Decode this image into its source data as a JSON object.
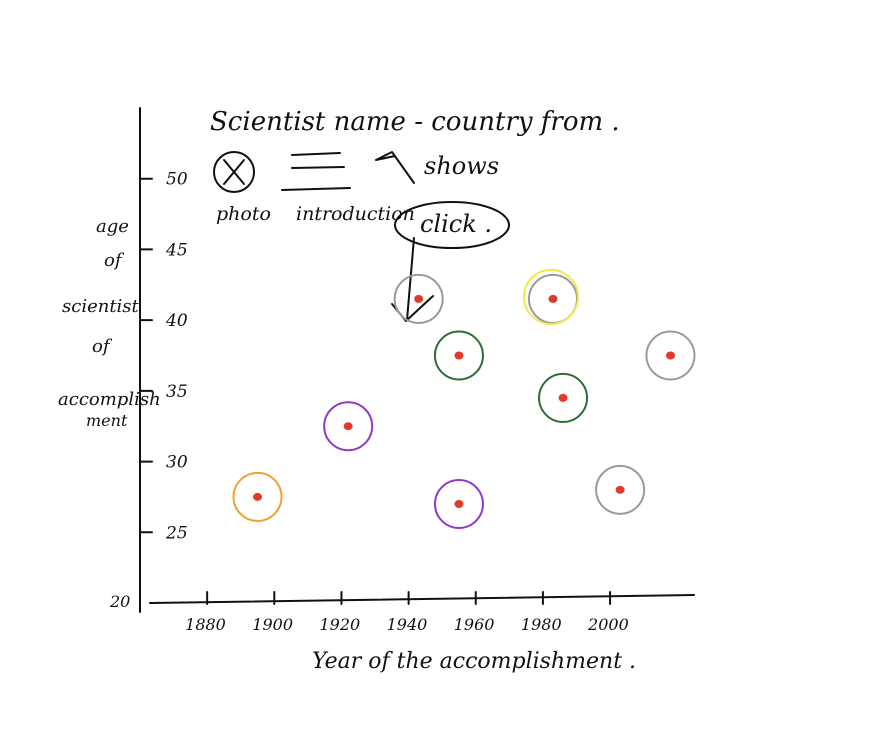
{
  "header": {
    "title": "Scientist name - country from .",
    "photo_label": "photo",
    "intro_label": "introduction",
    "shows_label": "shows",
    "click_label": "click ."
  },
  "axes": {
    "y_label_lines": [
      "age",
      "of",
      "scientist",
      "of",
      "accomplish",
      "ment"
    ],
    "x_label": "Year of the accomplishment .",
    "origin_label": "20",
    "y_ticks": [
      "50",
      "45",
      "40",
      "35",
      "30",
      "25"
    ],
    "x_ticks": [
      "1880",
      "1900",
      "1920",
      "1940",
      "1960",
      "1980",
      "2000"
    ]
  },
  "colors": {
    "ink": "#111111",
    "dot": "#e03a2a",
    "orange": "#f0a030",
    "purple": "#8e3bc7",
    "green": "#2f6b35",
    "gray": "#9a9a9a",
    "yellow": "#f2e84a",
    "pointer": "#c0392b"
  },
  "chart_data": {
    "type": "scatter",
    "xlabel": "Year of the accomplishment .",
    "ylabel": "age of scientist of accomplishment",
    "xlim": [
      1860,
      2025
    ],
    "ylim": [
      20,
      55
    ],
    "points": [
      {
        "x": 1895,
        "y": 27.5,
        "ring": "orange"
      },
      {
        "x": 1922,
        "y": 32.5,
        "ring": "purple"
      },
      {
        "x": 1943,
        "y": 41.5,
        "ring": "gray"
      },
      {
        "x": 1955,
        "y": 37.5,
        "ring": "green"
      },
      {
        "x": 1955,
        "y": 27,
        "ring": "purple"
      },
      {
        "x": 1983,
        "y": 41.5,
        "ring": "gray+yellow"
      },
      {
        "x": 1986,
        "y": 34.5,
        "ring": "green"
      },
      {
        "x": 2003,
        "y": 28,
        "ring": "gray"
      },
      {
        "x": 2018,
        "y": 37.5,
        "ring": "gray"
      }
    ],
    "selected_point_index": 2,
    "grid": false
  }
}
